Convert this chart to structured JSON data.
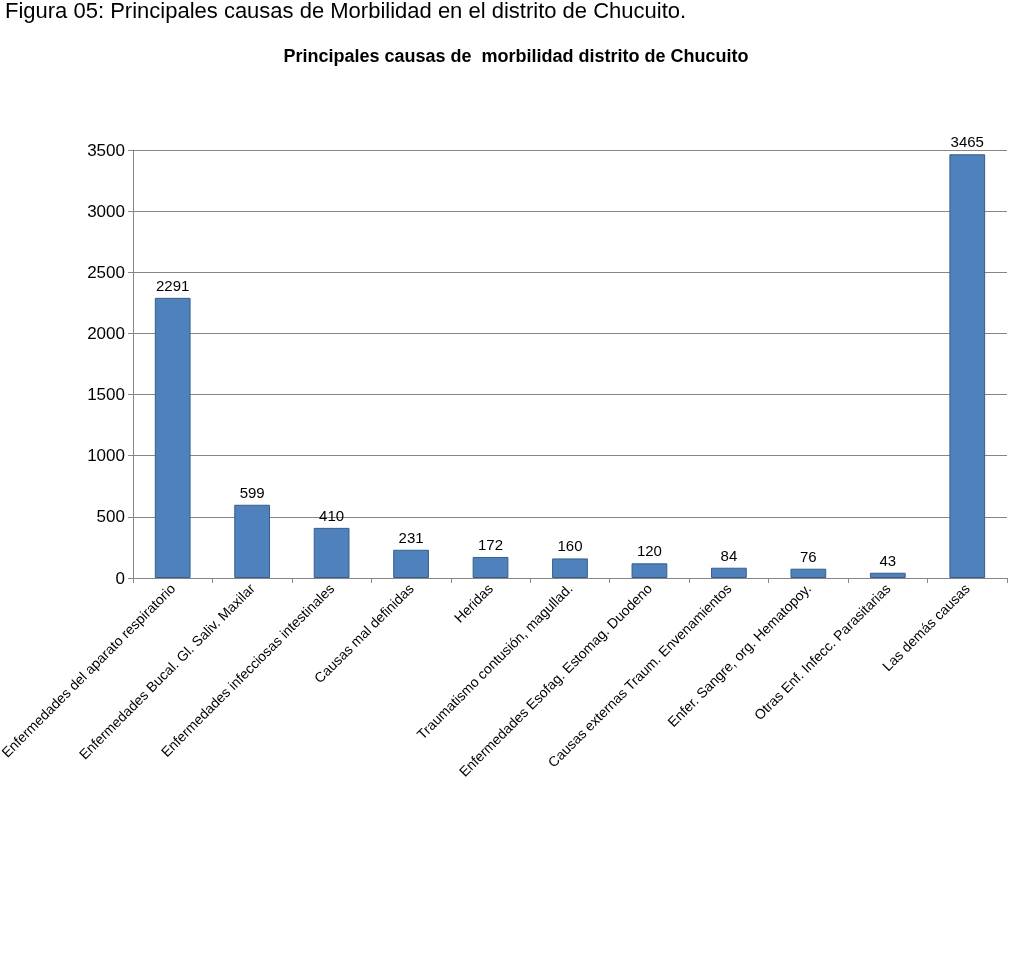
{
  "chart_data": {
    "type": "bar",
    "title": "Principales causas de  morbilidad distrito de Chucuito",
    "annotations": [
      "Figura 05: Principales causas de Morbilidad en el distrito de Chucuito."
    ],
    "categories": [
      "Enfermedades del aparato respiratorio",
      "Enfermedades Bucal. Gl. Saliv. Maxilar",
      "Enfermedades infecciosas intestinales",
      "Causas mal definidas",
      "Heridas",
      "Traumatismo contusión, magullad.",
      "Enfermedades Esofag. Estomag. Duodeno",
      "Causas externas Traum. Envenamientos",
      "Enfer. Sangre, org. Hematopoy.",
      "Otras Enf. Infecc. Parasitarias",
      "Las demás causas"
    ],
    "values": [
      2291,
      599,
      410,
      231,
      172,
      160,
      120,
      84,
      76,
      43,
      3465
    ],
    "color": "#4f81bd",
    "ylim": [
      0,
      3500
    ],
    "yticks": [
      0,
      500,
      1000,
      1500,
      2000,
      2500,
      3000,
      3500
    ],
    "grid": "y",
    "data_labels": true
  }
}
